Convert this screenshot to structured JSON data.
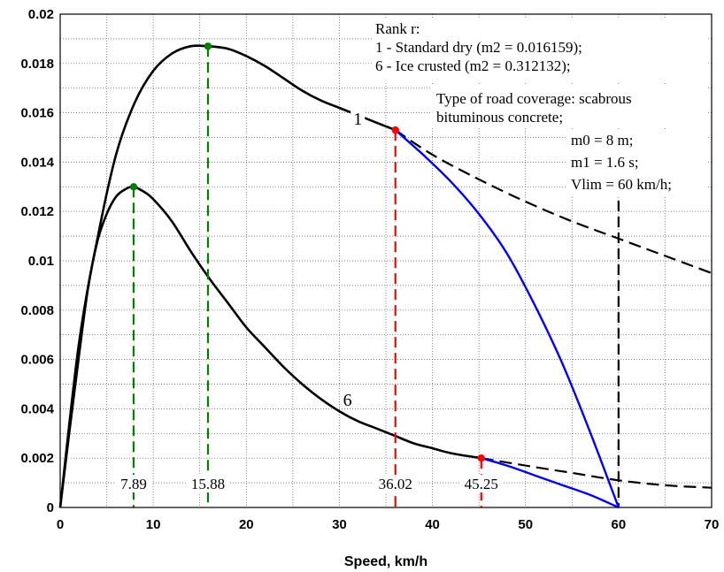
{
  "chart_data": {
    "type": "line",
    "xlabel": "Speed, km/h",
    "ylabel": "",
    "xlim": [
      0,
      70
    ],
    "ylim": [
      0,
      0.02
    ],
    "x_ticks": [
      0,
      10,
      20,
      30,
      40,
      50,
      60,
      70
    ],
    "x_tick_labels": [
      "0",
      "10",
      "20",
      "30",
      "40",
      "50",
      "60",
      "70"
    ],
    "y_ticks": [
      0,
      0.002,
      0.004,
      0.006,
      0.008,
      0.01,
      0.012,
      0.014,
      0.016,
      0.018,
      0.02
    ],
    "y_tick_labels": [
      "0",
      "0.002",
      "0.004",
      "0.006",
      "0.008",
      "0.01",
      "0.012",
      "0.014",
      "0.016",
      "0.018",
      "0.02"
    ],
    "grid": true,
    "colors": {
      "curve": "#000000",
      "limit_curve": "#0000ff",
      "peak": "#008000",
      "transition": "#ff0000",
      "vlim_line": "#000000"
    },
    "series": [
      {
        "label": "1",
        "color": "#000000",
        "solid_x": [
          0,
          2,
          4,
          6,
          8,
          10,
          12,
          14,
          15.88,
          18,
          20,
          22,
          24,
          26,
          28,
          30,
          32,
          34,
          36.02
        ],
        "solid_y": [
          0,
          0.0066,
          0.0109,
          0.0143,
          0.0164,
          0.0177,
          0.0184,
          0.0187,
          0.0187,
          0.0186,
          0.0183,
          0.0179,
          0.0174,
          0.0169,
          0.0165,
          0.0162,
          0.0159,
          0.0156,
          0.0153
        ],
        "dashed_x": [
          36.02,
          40,
          45,
          50,
          55,
          60,
          65,
          70
        ],
        "dashed_y": [
          0.0153,
          0.0143,
          0.0133,
          0.0124,
          0.0116,
          0.0109,
          0.0102,
          0.0095
        ]
      },
      {
        "label": "6",
        "color": "#000000",
        "solid_x": [
          0,
          1,
          2,
          3,
          4,
          5,
          6,
          7,
          7.89,
          9,
          10,
          12,
          14,
          16,
          18,
          20,
          22,
          24,
          26,
          28,
          30,
          32,
          34,
          36,
          38,
          40,
          42,
          45.25
        ],
        "solid_y": [
          0,
          0.0031,
          0.0061,
          0.0089,
          0.0108,
          0.0119,
          0.0126,
          0.0129,
          0.013,
          0.0128,
          0.0125,
          0.0116,
          0.0104,
          0.0093,
          0.0083,
          0.0073,
          0.0065,
          0.0057,
          0.005,
          0.0044,
          0.0039,
          0.0035,
          0.0032,
          0.0029,
          0.0026,
          0.0024,
          0.0022,
          0.002
        ],
        "dashed_x": [
          45.25,
          50,
          55,
          60,
          65,
          70
        ],
        "dashed_y": [
          0.002,
          0.0017,
          0.0014,
          0.0011,
          0.0009,
          0.0008
        ]
      }
    ],
    "limit_curves": [
      {
        "x": [
          36.02,
          39,
          42,
          45,
          48,
          51,
          54,
          57,
          60
        ],
        "y": [
          0.0153,
          0.0143,
          0.0132,
          0.0119,
          0.0103,
          0.0082,
          0.0058,
          0.003,
          0
        ]
      },
      {
        "x": [
          45.25,
          48,
          51,
          54,
          57,
          60
        ],
        "y": [
          0.002,
          0.0017,
          0.0013,
          0.0009,
          0.0005,
          0
        ]
      }
    ],
    "vertical_markers": [
      {
        "x": 7.89,
        "y": 0.013,
        "color": "#008000",
        "label": "7.89"
      },
      {
        "x": 15.88,
        "y": 0.0187,
        "color": "#008000",
        "label": "15.88"
      },
      {
        "x": 36.02,
        "y": 0.0153,
        "color": "#ff0000",
        "label": "36.02"
      },
      {
        "x": 45.25,
        "y": 0.002,
        "color": "#ff0000",
        "label": "45.25"
      }
    ],
    "vlim_line": {
      "x": 60,
      "color": "#000000"
    },
    "curve_labels": [
      {
        "text": "1",
        "x": 31.5,
        "y": 0.0156
      },
      {
        "text": "6",
        "x": 30.4,
        "y": 0.0042
      }
    ],
    "annotation_lines": [
      "Rank r:",
      "1 - Standard dry (m2 = 0.016159);",
      "6 - Ice crusted (m2 = 0.312132);",
      "Type of road coverage: scabrous",
      "bituminous concrete;",
      "m0 = 8 m;",
      "m1 = 1.6 s;",
      "Vlim = 60 km/h;"
    ]
  }
}
